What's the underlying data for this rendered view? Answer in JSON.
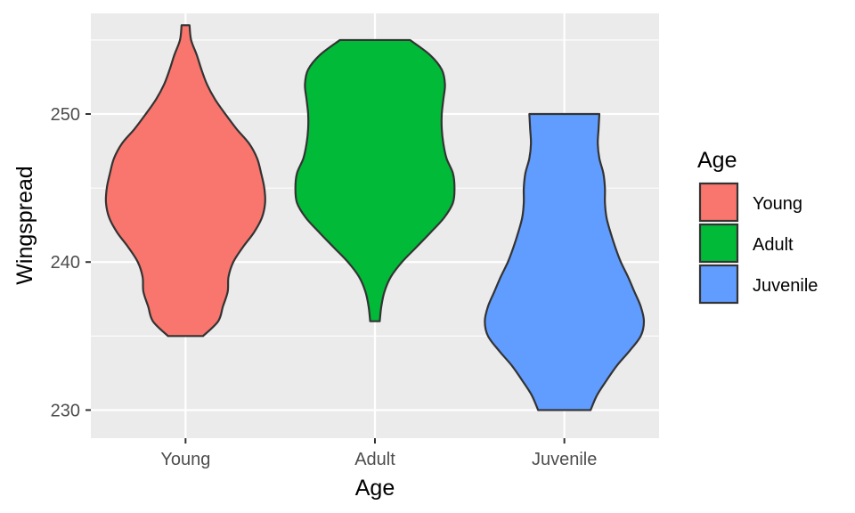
{
  "chart_data": {
    "type": "violin",
    "xlabel": "Age",
    "ylabel": "Wingspread",
    "categories": [
      "Young",
      "Adult",
      "Juvenile"
    ],
    "ylim": [
      228.1,
      256.8
    ],
    "yticks": [
      230,
      240,
      250
    ],
    "grid": true,
    "legend": {
      "title": "Age",
      "placement": "right",
      "entries": [
        "Young",
        "Adult",
        "Juvenile"
      ]
    },
    "colors": [
      "#F8766D",
      "#00BA38",
      "#619CFF"
    ],
    "series": [
      {
        "name": "Young",
        "min": 235,
        "max": 256,
        "density_profile": [
          [
            235,
            0.22
          ],
          [
            236,
            0.41
          ],
          [
            237,
            0.47
          ],
          [
            238,
            0.53
          ],
          [
            239,
            0.54
          ],
          [
            240,
            0.6
          ],
          [
            241,
            0.72
          ],
          [
            242,
            0.86
          ],
          [
            243,
            0.96
          ],
          [
            244,
            1.0
          ],
          [
            245,
            0.99
          ],
          [
            246,
            0.95
          ],
          [
            247,
            0.9
          ],
          [
            248,
            0.8
          ],
          [
            249,
            0.64
          ],
          [
            250,
            0.5
          ],
          [
            251,
            0.37
          ],
          [
            252,
            0.27
          ],
          [
            253,
            0.2
          ],
          [
            254,
            0.14
          ],
          [
            255,
            0.07
          ],
          [
            256,
            0.05
          ]
        ]
      },
      {
        "name": "Adult",
        "min": 236,
        "max": 255,
        "density_profile": [
          [
            236,
            0.06
          ],
          [
            237,
            0.08
          ],
          [
            238,
            0.12
          ],
          [
            239,
            0.2
          ],
          [
            240,
            0.34
          ],
          [
            241,
            0.52
          ],
          [
            242,
            0.7
          ],
          [
            243,
            0.87
          ],
          [
            244,
            0.98
          ],
          [
            245,
            1.0
          ],
          [
            246,
            0.98
          ],
          [
            247,
            0.9
          ],
          [
            248,
            0.86
          ],
          [
            249,
            0.84
          ],
          [
            250,
            0.84
          ],
          [
            251,
            0.86
          ],
          [
            252,
            0.88
          ],
          [
            253,
            0.84
          ],
          [
            254,
            0.69
          ],
          [
            255,
            0.44
          ]
        ]
      },
      {
        "name": "Juvenile",
        "min": 230,
        "max": 250,
        "density_profile": [
          [
            230,
            0.33
          ],
          [
            231,
            0.41
          ],
          [
            232,
            0.53
          ],
          [
            233,
            0.66
          ],
          [
            234,
            0.82
          ],
          [
            235,
            0.96
          ],
          [
            236,
            1.0
          ],
          [
            237,
            0.96
          ],
          [
            238,
            0.88
          ],
          [
            239,
            0.8
          ],
          [
            240,
            0.71
          ],
          [
            241,
            0.64
          ],
          [
            242,
            0.58
          ],
          [
            243,
            0.53
          ],
          [
            244,
            0.51
          ],
          [
            245,
            0.51
          ],
          [
            246,
            0.49
          ],
          [
            247,
            0.44
          ],
          [
            248,
            0.42
          ],
          [
            249,
            0.43
          ],
          [
            250,
            0.44
          ]
        ]
      }
    ]
  }
}
